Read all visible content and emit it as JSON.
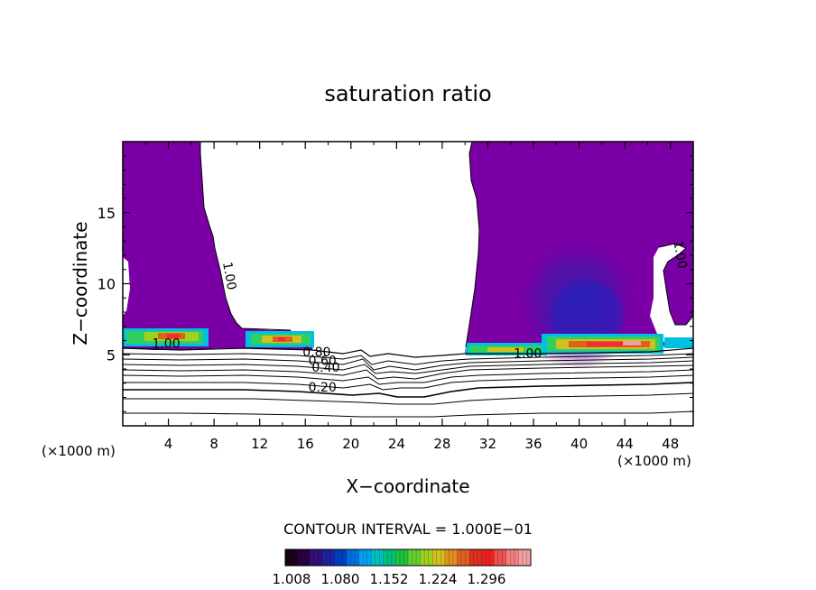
{
  "chart_data": {
    "type": "heatmap",
    "title": "saturation ratio",
    "xlabel": "X−coordinate",
    "ylabel": "Z−coordinate",
    "x_unit_left": "(×1000 m)",
    "x_unit_right": "(×1000 m)",
    "xlim": [
      0,
      50
    ],
    "ylim": [
      0,
      20
    ],
    "x_ticks": [
      4,
      8,
      12,
      16,
      20,
      24,
      28,
      32,
      36,
      40,
      44,
      48
    ],
    "x_tick_labels": [
      "4",
      "8",
      "12",
      "16",
      "20",
      "24",
      "28",
      "32",
      "36",
      "40",
      "44",
      "48"
    ],
    "y_ticks": [
      5,
      10,
      15
    ],
    "y_tick_labels": [
      "5",
      "10",
      "15"
    ],
    "contour_interval_label": "CONTOUR INTERVAL = 1.000E−01",
    "contour_labels": [
      {
        "text": "1.00",
        "x": 9.0,
        "y": 10.5,
        "rotate": 80
      },
      {
        "text": "1.00",
        "x": 3.8,
        "y": 5.5,
        "rotate": 0
      },
      {
        "text": "0.80",
        "x": 17.0,
        "y": 4.9,
        "rotate": 0
      },
      {
        "text": "0.60",
        "x": 17.5,
        "y": 4.3,
        "rotate": 0
      },
      {
        "text": "0.40",
        "x": 17.8,
        "y": 3.8,
        "rotate": 0
      },
      {
        "text": "0.20",
        "x": 17.5,
        "y": 2.4,
        "rotate": 0
      },
      {
        "text": "1.00",
        "x": 35.5,
        "y": 4.8,
        "rotate": 0
      },
      {
        "text": "1.00",
        "x": 48.5,
        "y": 12.0,
        "rotate": 80
      }
    ],
    "colorbar": {
      "tick_labels": [
        "1.008",
        "1.080",
        "1.152",
        "1.224",
        "1.296"
      ],
      "colors": [
        "#1a001a",
        "#2a0040",
        "#30107a",
        "#2020a0",
        "#0040c0",
        "#0070e0",
        "#00a0f0",
        "#00c0c0",
        "#00c080",
        "#20c040",
        "#60d030",
        "#a0d020",
        "#d0c020",
        "#e09020",
        "#e06020",
        "#e03020",
        "#f02020",
        "#f05050",
        "#f08080",
        "#f0a0a0"
      ]
    }
  }
}
